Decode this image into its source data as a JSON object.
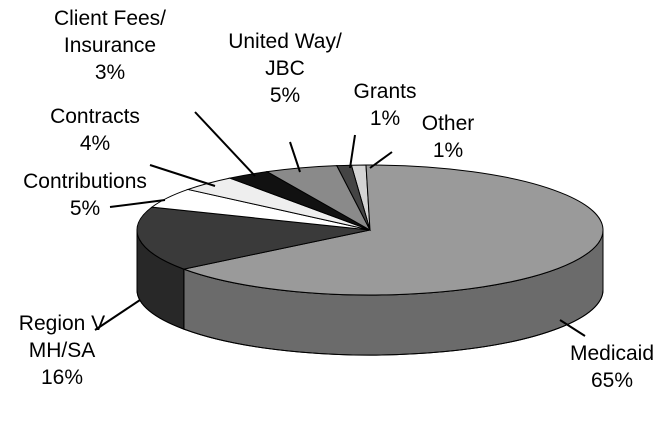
{
  "chart_data": {
    "type": "pie",
    "categories": [
      "Other",
      "Medicaid",
      "Region V\nMH/SA",
      "Contributions",
      "Contracts",
      "Client Fees/\nInsurance",
      "United Way/\nJBC",
      "Grants"
    ],
    "values": [
      1,
      65,
      16,
      5,
      4,
      3,
      5,
      1
    ],
    "value_labels": [
      "1%",
      "65%",
      "16%",
      "5%",
      "4%",
      "3%",
      "5%",
      "1%"
    ],
    "colors": [
      "#d4d4d4",
      "#9a9a9a",
      "#3a3a3a",
      "#ffffff",
      "#eeeeee",
      "#111111",
      "#8a8a8a",
      "#444444"
    ]
  }
}
